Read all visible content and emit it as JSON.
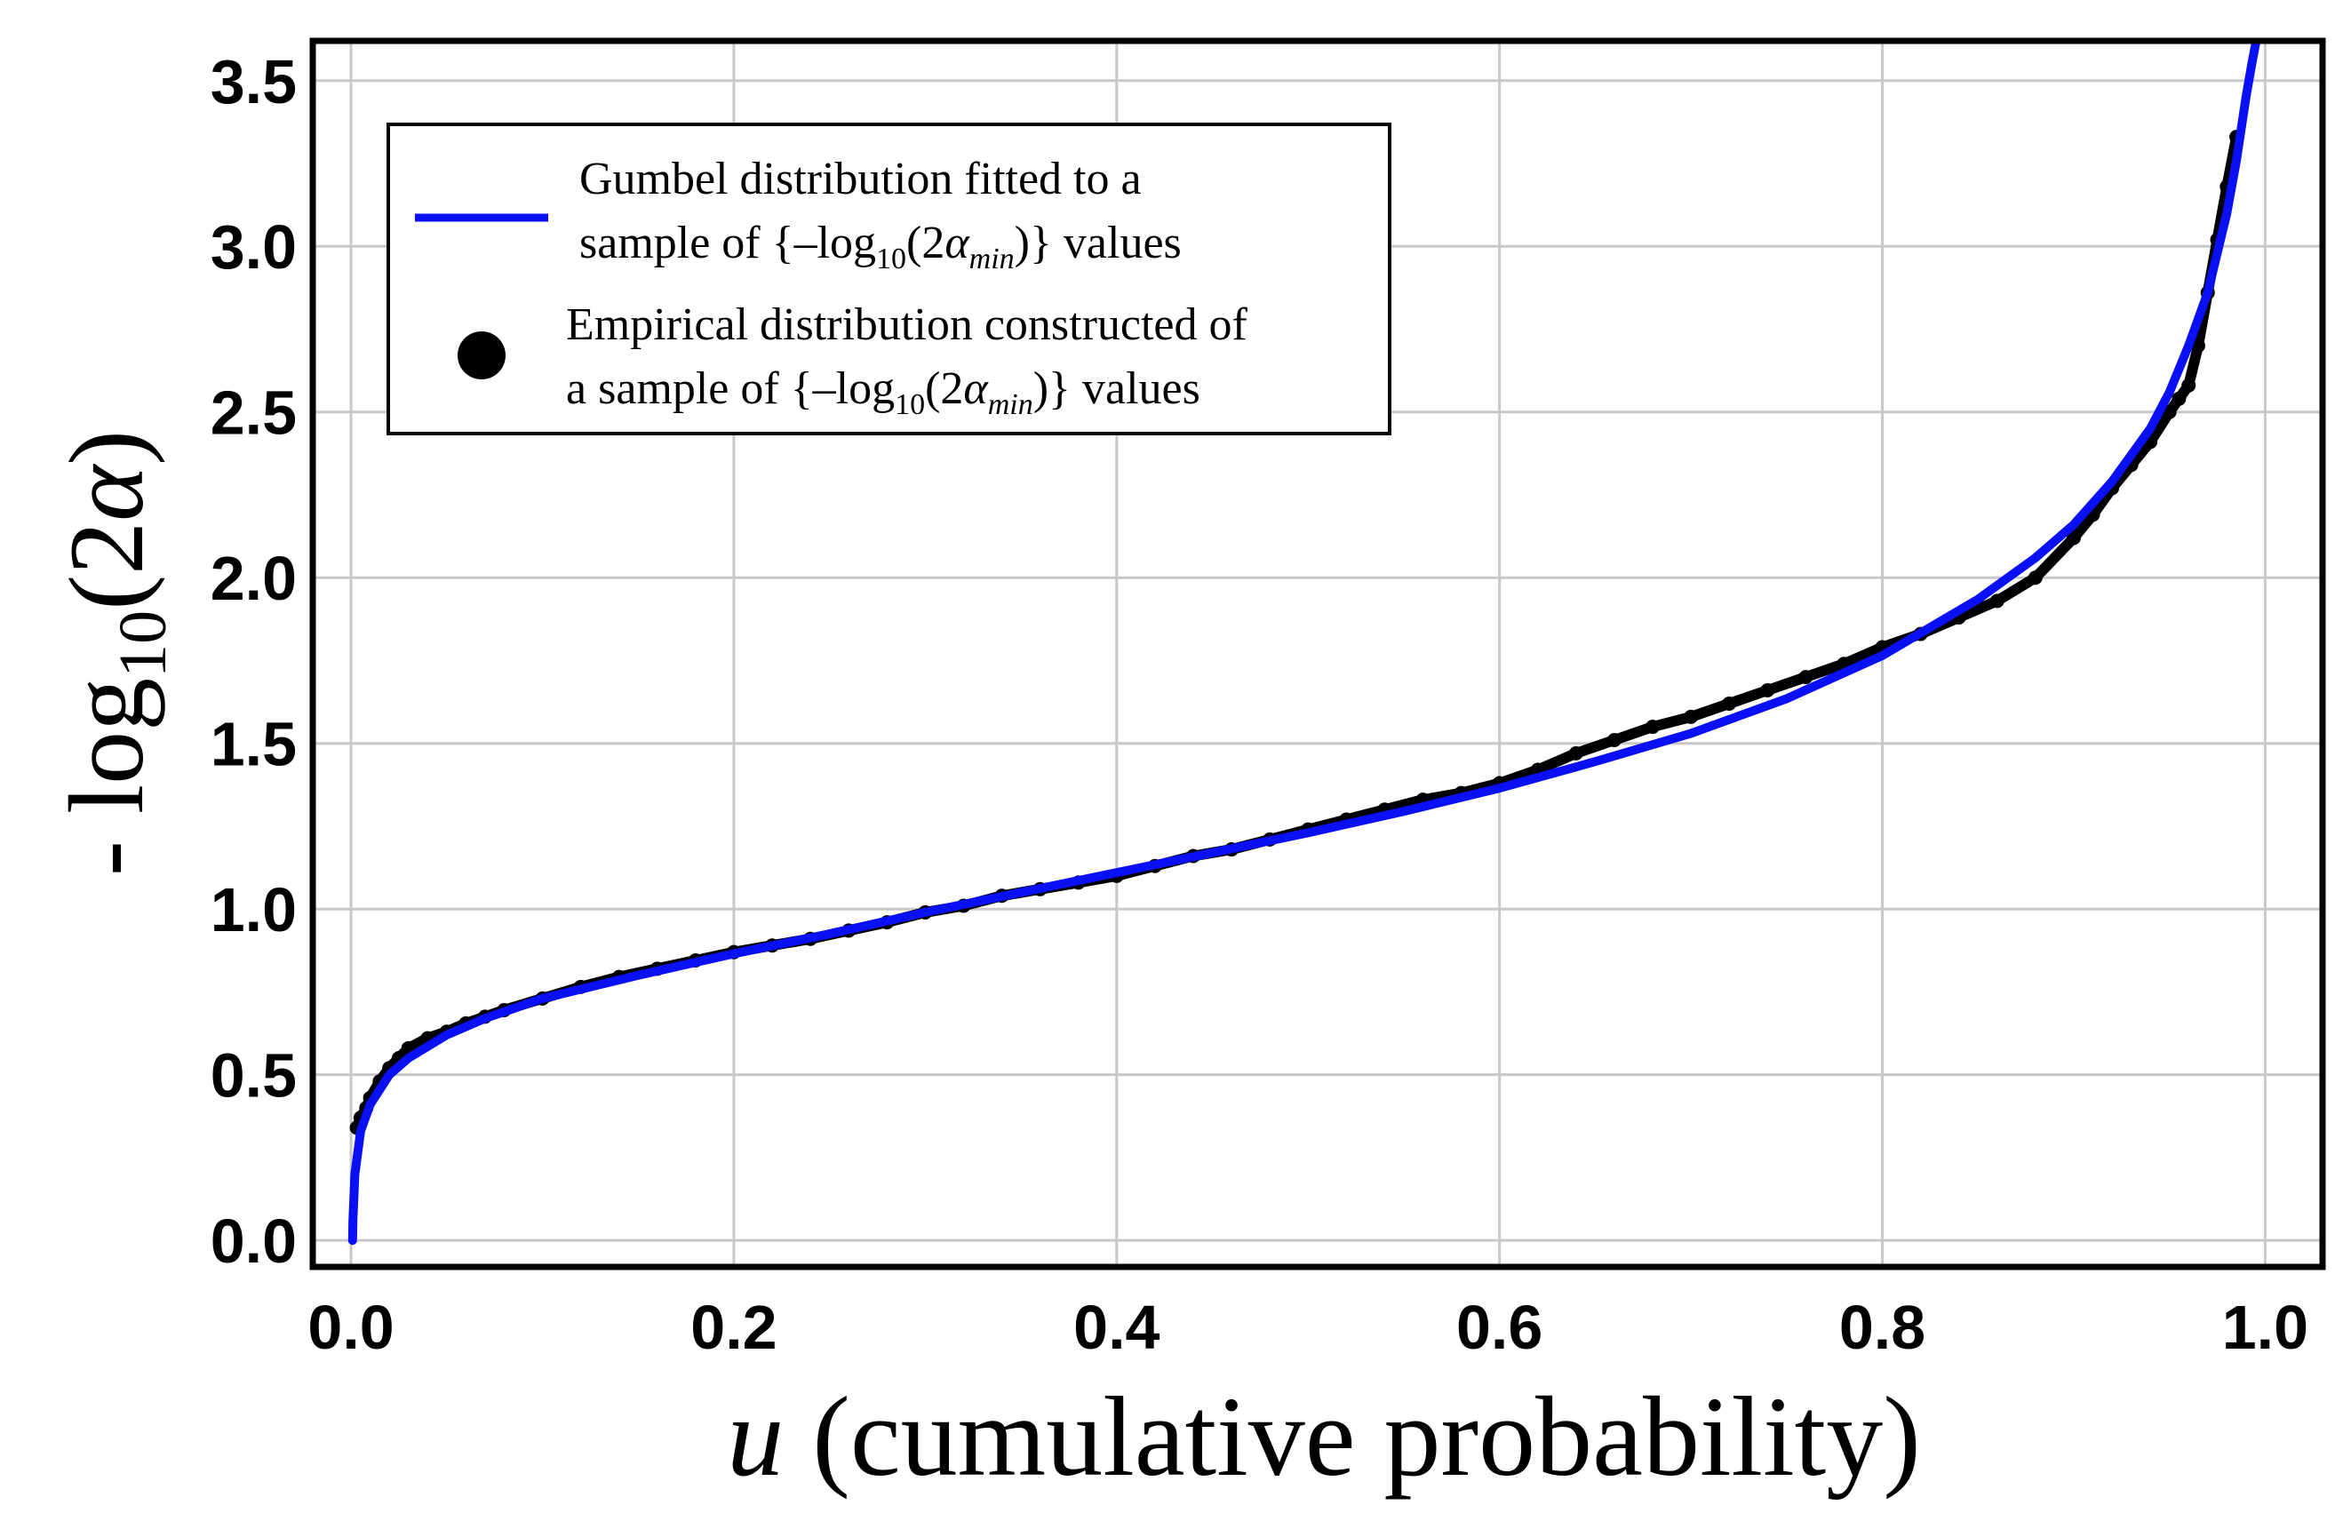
{
  "chart_data": {
    "type": "line",
    "xlabel": {
      "var": "u",
      "rest": " (cumulative probability)"
    },
    "ylabel": {
      "prefix": "- log",
      "sub": "10",
      "open": "(2",
      "var": "α",
      "close": ")"
    },
    "xlim": [
      -0.02,
      1.03
    ],
    "ylim": [
      -0.08,
      3.62
    ],
    "x_ticks": [
      0.0,
      0.2,
      0.4,
      0.6,
      0.8,
      1.0
    ],
    "x_tick_labels": [
      "0.0",
      "0.2",
      "0.4",
      "0.6",
      "0.8",
      "1.0"
    ],
    "y_ticks": [
      0.0,
      0.5,
      1.0,
      1.5,
      2.0,
      2.5,
      3.0,
      3.5
    ],
    "y_tick_labels": [
      "0.0",
      "0.5",
      "1.0",
      "1.5",
      "2.0",
      "2.5",
      "3.0",
      "3.5"
    ],
    "grid": true,
    "legend": {
      "placement": "top-left",
      "entries": [
        {
          "series": "gumbel_fit",
          "line1": "Gumbel distribution fitted to a",
          "line2_pre": "sample of {–log",
          "line2_sub10": "10",
          "line2_mid": "(2",
          "line2_alpha": "α",
          "line2_min": "min",
          "line2_post": ")} values"
        },
        {
          "series": "empirical",
          "line1": "Empirical distribution constructed of",
          "line2_pre": "a sample of {–log",
          "line2_sub10": "10",
          "line2_mid": "(2",
          "line2_alpha": "α",
          "line2_min": "min",
          "line2_post": ")} values"
        }
      ]
    },
    "series": [
      {
        "name": "gumbel_fit",
        "kind": "line",
        "color": "#0a10f5",
        "x": [
          0.0008,
          0.001,
          0.002,
          0.005,
          0.01,
          0.02,
          0.03,
          0.05,
          0.07,
          0.1,
          0.15,
          0.2,
          0.25,
          0.3,
          0.35,
          0.4,
          0.45,
          0.5,
          0.55,
          0.6,
          0.65,
          0.7,
          0.75,
          0.8,
          0.85,
          0.88,
          0.9,
          0.92,
          0.94,
          0.95,
          0.96,
          0.97,
          0.98,
          0.985,
          0.99,
          0.993,
          0.995
        ],
        "y": [
          0.0,
          0.06,
          0.2,
          0.33,
          0.41,
          0.5,
          0.55,
          0.62,
          0.67,
          0.73,
          0.8,
          0.865,
          0.925,
          0.99,
          1.05,
          1.11,
          1.17,
          1.23,
          1.295,
          1.365,
          1.445,
          1.53,
          1.635,
          1.765,
          1.935,
          2.06,
          2.16,
          2.29,
          2.45,
          2.56,
          2.7,
          2.86,
          3.1,
          3.26,
          3.45,
          3.55,
          3.61
        ]
      },
      {
        "name": "empirical",
        "kind": "points",
        "color": "#000000",
        "x": [
          0.003,
          0.005,
          0.008,
          0.01,
          0.015,
          0.02,
          0.025,
          0.03,
          0.04,
          0.05,
          0.06,
          0.07,
          0.08,
          0.1,
          0.12,
          0.14,
          0.16,
          0.18,
          0.2,
          0.22,
          0.24,
          0.26,
          0.28,
          0.3,
          0.32,
          0.34,
          0.36,
          0.38,
          0.4,
          0.42,
          0.44,
          0.46,
          0.48,
          0.5,
          0.52,
          0.54,
          0.56,
          0.58,
          0.6,
          0.62,
          0.64,
          0.66,
          0.68,
          0.7,
          0.72,
          0.74,
          0.76,
          0.78,
          0.8,
          0.82,
          0.84,
          0.86,
          0.88,
          0.9,
          0.91,
          0.92,
          0.93,
          0.94,
          0.95,
          0.955,
          0.96,
          0.965,
          0.97,
          0.975,
          0.98,
          0.985
        ],
        "y": [
          0.34,
          0.37,
          0.4,
          0.43,
          0.48,
          0.52,
          0.55,
          0.58,
          0.61,
          0.63,
          0.655,
          0.675,
          0.695,
          0.73,
          0.765,
          0.795,
          0.82,
          0.845,
          0.87,
          0.89,
          0.91,
          0.935,
          0.96,
          0.99,
          1.01,
          1.04,
          1.06,
          1.08,
          1.1,
          1.13,
          1.16,
          1.18,
          1.21,
          1.24,
          1.27,
          1.3,
          1.33,
          1.35,
          1.38,
          1.42,
          1.47,
          1.51,
          1.55,
          1.58,
          1.62,
          1.66,
          1.7,
          1.74,
          1.79,
          1.83,
          1.88,
          1.93,
          2.0,
          2.12,
          2.19,
          2.27,
          2.34,
          2.41,
          2.5,
          2.54,
          2.58,
          2.7,
          2.86,
          3.02,
          3.18,
          3.33
        ]
      }
    ]
  }
}
